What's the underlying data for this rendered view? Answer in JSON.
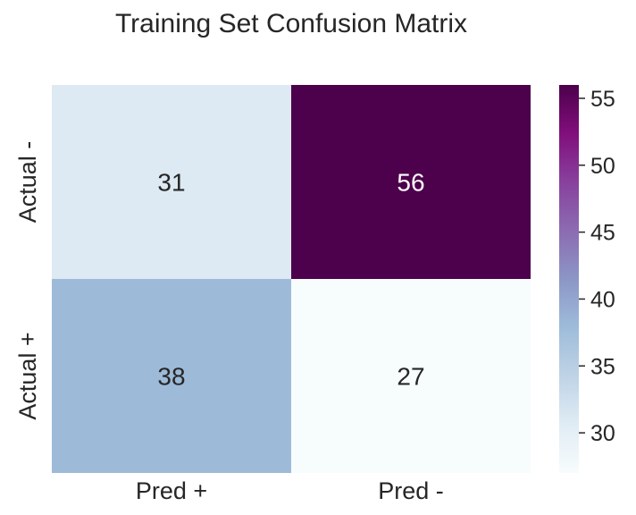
{
  "chart_data": {
    "type": "heatmap",
    "title": "Training Set Confusion Matrix",
    "x_categories": [
      "Pred +",
      "Pred -"
    ],
    "y_categories": [
      "Actual -",
      "Actual +"
    ],
    "values": [
      [
        31,
        56
      ],
      [
        38,
        27
      ]
    ],
    "colorbar": {
      "ticks": [
        30,
        35,
        40,
        45,
        50,
        55
      ],
      "tick_labels": [
        "30",
        "35",
        "40",
        "45",
        "50",
        "55"
      ],
      "range": [
        27,
        56
      ],
      "colormap": "BuPu"
    },
    "xlabel": "",
    "ylabel": "",
    "grid": false
  }
}
